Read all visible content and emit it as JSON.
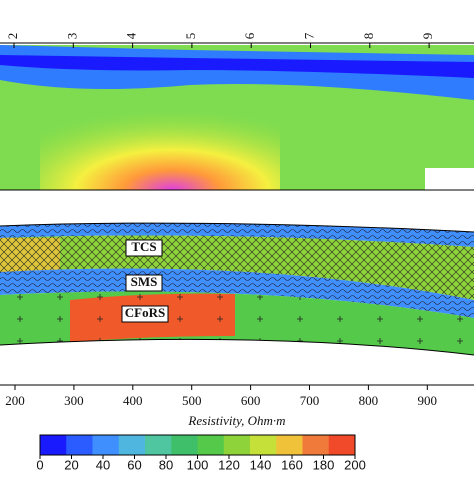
{
  "top_axis": {
    "ticks": [
      "2",
      "3",
      "4",
      "5",
      "6",
      "7",
      "8",
      "9"
    ]
  },
  "layers": [
    "TCS",
    "SMS",
    "CFoRS"
  ],
  "bottom_axis": {
    "ticks": [
      200,
      300,
      400,
      500,
      600,
      700,
      800,
      900
    ]
  },
  "colorbar": {
    "label": "Resistivity, Ohm·m",
    "ticks": [
      0,
      20,
      40,
      60,
      80,
      100,
      120,
      140,
      160,
      180,
      200
    ],
    "colors": [
      "#1a1aff",
      "#2a5cff",
      "#3f8fff",
      "#4fb6e0",
      "#4fc6a0",
      "#3fbf6a",
      "#54c94a",
      "#8ed33a",
      "#c6e03a",
      "#f0c23a",
      "#f07a3a",
      "#f04a2a"
    ]
  }
}
